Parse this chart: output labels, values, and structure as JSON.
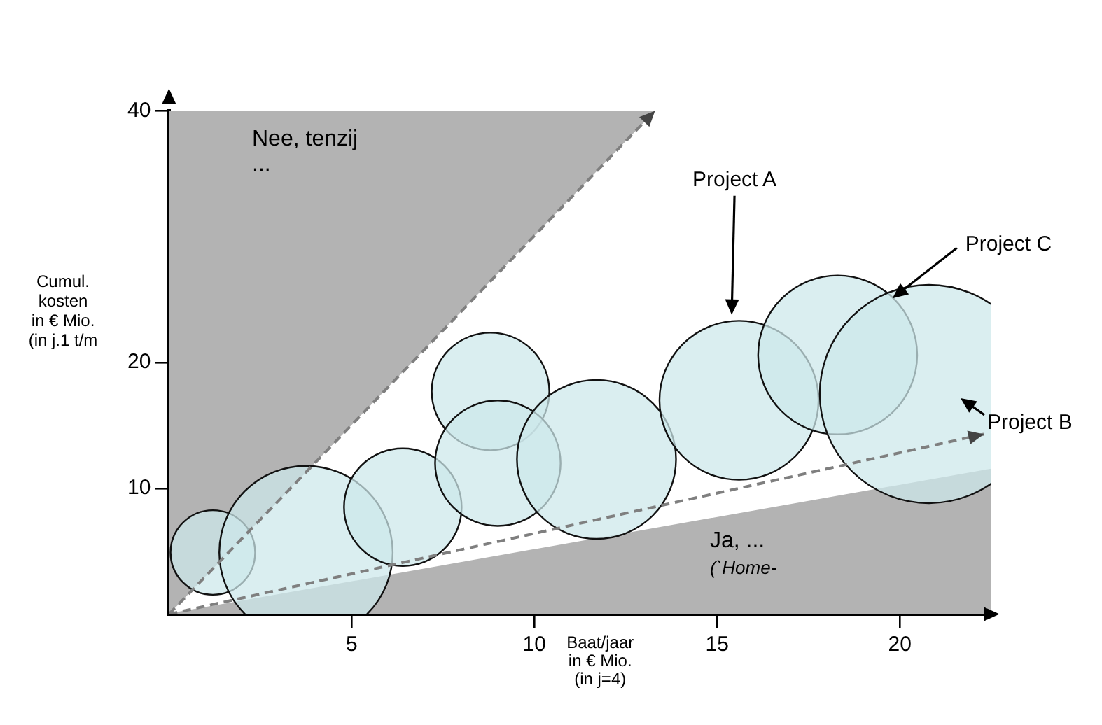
{
  "chart_data": {
    "type": "bubble",
    "xlabel": "Baat/jaar\nin € Mio.\n(in j=4)",
    "ylabel": "Cumul.\nkosten\nin € Mio.\n(in j.1 t/m",
    "xlim": [
      0,
      22.5
    ],
    "xticks": [
      5,
      10,
      15,
      20
    ],
    "ylim": [
      0,
      40
    ],
    "yticks": [
      10,
      20,
      40
    ],
    "grid": false,
    "legend": false,
    "series": [
      {
        "type": "line",
        "color": "#7f7f7f",
        "line_style": "dashed",
        "x": [
          0,
          13.3
        ],
        "values": [
          0,
          40
        ],
        "lower": [
          0,
          40
        ],
        "upper": [
          40,
          40
        ]
      },
      {
        "type": "area",
        "color": "#b3b3b3",
        "x": [
          0,
          22.5
        ],
        "values": [
          0,
          11.5
        ]
      },
      {
        "type": "line",
        "color": "#7f7f7f",
        "line_style": "dashed",
        "x": [
          0,
          22.3
        ],
        "values": [
          0,
          14.3
        ]
      },
      {
        "color": "#cde8ea",
        "x": [
          1.2,
          3.75,
          6.4,
          8.8,
          9.0,
          11.7,
          15.6,
          18.3,
          20.8
        ],
        "values": [
          4.9,
          4.9,
          8.5,
          17.7,
          12.0,
          12.3,
          17.0,
          20.6,
          17.5
        ],
        "sizes": [
          0.15,
          0.63,
          0.29,
          0.29,
          0.33,
          0.53,
          0.53,
          0.53,
          1
        ]
      }
    ],
    "annotations": [
      {
        "text": "Project A",
        "x": 15.4,
        "y": 23.8
      },
      {
        "text": "Project C",
        "x": 19.8,
        "y": 25.1
      },
      {
        "text": "Project B",
        "x": 20.8,
        "y": 17.5
      },
      "Nee, tenzij\n...",
      "Ja, ...",
      "(`Home-"
    ]
  }
}
